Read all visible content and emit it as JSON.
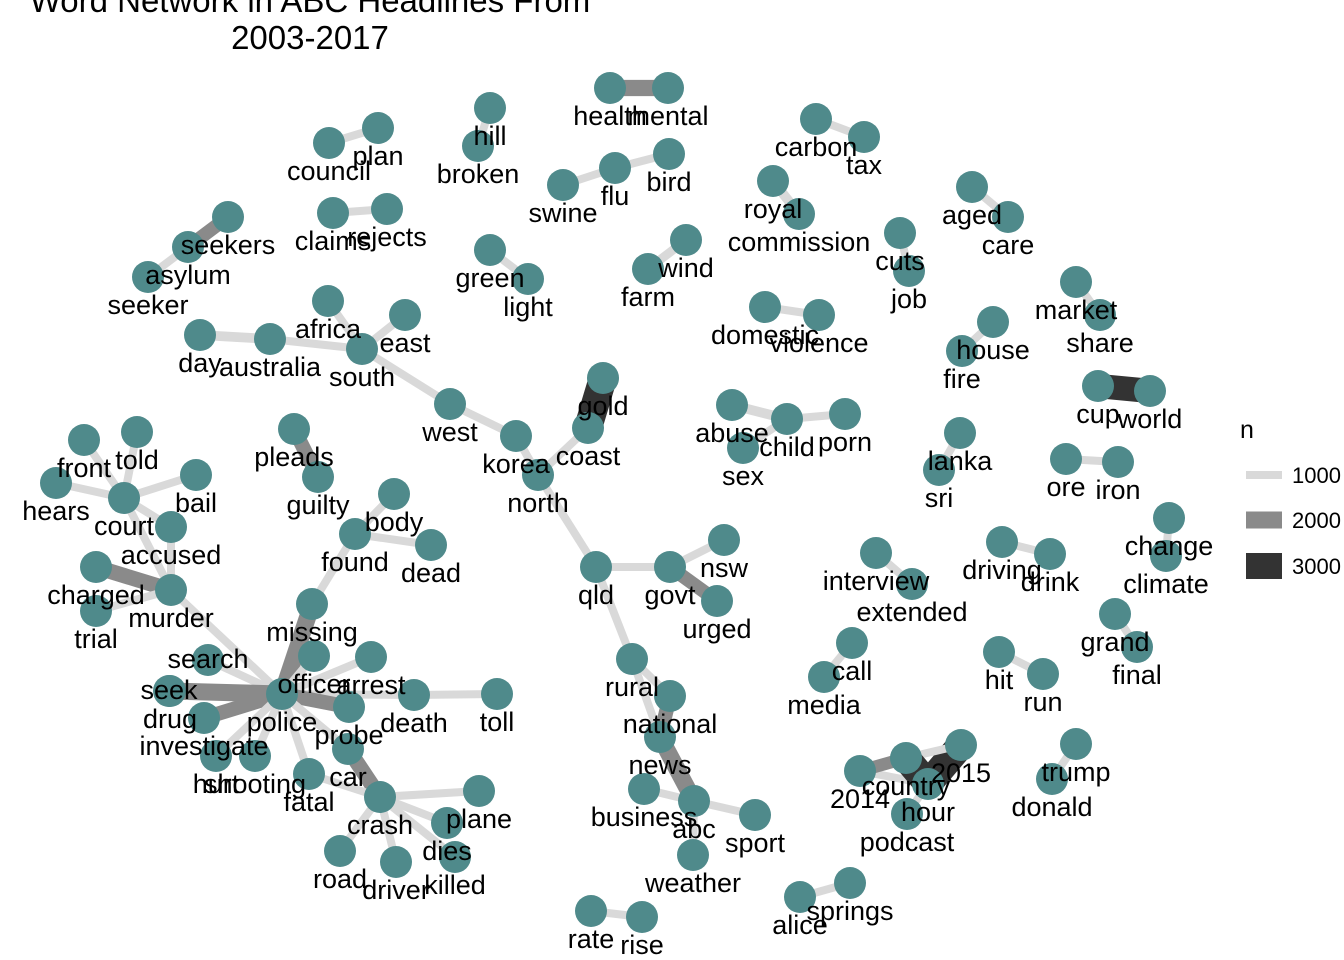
{
  "title_lines": [
    "Word Network in ABC Headlines From",
    "2003-2017"
  ],
  "node_color": "#4f8a8b",
  "legend": {
    "title": "n",
    "items": [
      {
        "label": "1000",
        "color": "#d9d9d9"
      },
      {
        "label": "2000",
        "color": "#8a8a8a"
      },
      {
        "label": "3000",
        "color": "#333333"
      }
    ]
  },
  "nodes": [
    {
      "id": "health",
      "label": "health"
    },
    {
      "id": "mental",
      "label": "mental"
    },
    {
      "id": "hill",
      "label": "hill"
    },
    {
      "id": "broken",
      "label": "broken"
    },
    {
      "id": "council",
      "label": "council"
    },
    {
      "id": "plan",
      "label": "plan"
    },
    {
      "id": "flu",
      "label": "flu"
    },
    {
      "id": "bird",
      "label": "bird"
    },
    {
      "id": "swine",
      "label": "swine"
    },
    {
      "id": "carbon",
      "label": "carbon"
    },
    {
      "id": "tax",
      "label": "tax"
    },
    {
      "id": "royal",
      "label": "royal"
    },
    {
      "id": "commission",
      "label": "commission"
    },
    {
      "id": "aged",
      "label": "aged"
    },
    {
      "id": "care",
      "label": "care"
    },
    {
      "id": "seekers",
      "label": "seekers"
    },
    {
      "id": "asylum",
      "label": "asylum"
    },
    {
      "id": "seeker",
      "label": "seeker"
    },
    {
      "id": "claims",
      "label": "claims"
    },
    {
      "id": "rejects",
      "label": "rejects"
    },
    {
      "id": "cuts",
      "label": "cuts"
    },
    {
      "id": "job",
      "label": "job"
    },
    {
      "id": "green",
      "label": "green"
    },
    {
      "id": "light",
      "label": "light"
    },
    {
      "id": "wind",
      "label": "wind"
    },
    {
      "id": "farm",
      "label": "farm"
    },
    {
      "id": "market",
      "label": "market"
    },
    {
      "id": "share",
      "label": "share"
    },
    {
      "id": "africa",
      "label": "africa"
    },
    {
      "id": "day",
      "label": "day"
    },
    {
      "id": "australia",
      "label": "australia"
    },
    {
      "id": "south",
      "label": "south"
    },
    {
      "id": "east",
      "label": "east"
    },
    {
      "id": "domestic",
      "label": "domestic"
    },
    {
      "id": "violence",
      "label": "violence"
    },
    {
      "id": "house",
      "label": "house"
    },
    {
      "id": "fire",
      "label": "fire"
    },
    {
      "id": "gold",
      "label": "gold"
    },
    {
      "id": "cup",
      "label": "cup"
    },
    {
      "id": "world",
      "label": "world"
    },
    {
      "id": "west",
      "label": "west"
    },
    {
      "id": "coast",
      "label": "coast"
    },
    {
      "id": "korea",
      "label": "korea"
    },
    {
      "id": "north",
      "label": "north"
    },
    {
      "id": "abuse",
      "label": "abuse"
    },
    {
      "id": "child",
      "label": "child"
    },
    {
      "id": "porn",
      "label": "porn"
    },
    {
      "id": "sex",
      "label": "sex"
    },
    {
      "id": "lanka",
      "label": "lanka"
    },
    {
      "id": "sri",
      "label": "sri"
    },
    {
      "id": "ore",
      "label": "ore"
    },
    {
      "id": "iron",
      "label": "iron"
    },
    {
      "id": "front",
      "label": "front"
    },
    {
      "id": "told",
      "label": "told"
    },
    {
      "id": "hears",
      "label": "hears"
    },
    {
      "id": "court",
      "label": "court"
    },
    {
      "id": "bail",
      "label": "bail"
    },
    {
      "id": "accused",
      "label": "accused"
    },
    {
      "id": "pleads",
      "label": "pleads"
    },
    {
      "id": "guilty",
      "label": "guilty"
    },
    {
      "id": "body",
      "label": "body"
    },
    {
      "id": "found",
      "label": "found"
    },
    {
      "id": "dead",
      "label": "dead"
    },
    {
      "id": "change",
      "label": "change"
    },
    {
      "id": "climate",
      "label": "climate"
    },
    {
      "id": "charged",
      "label": "charged"
    },
    {
      "id": "murder",
      "label": "murder"
    },
    {
      "id": "trial",
      "label": "trial"
    },
    {
      "id": "nsw",
      "label": "nsw"
    },
    {
      "id": "qld",
      "label": "qld"
    },
    {
      "id": "govt",
      "label": "govt"
    },
    {
      "id": "urged",
      "label": "urged"
    },
    {
      "id": "interview",
      "label": "interview"
    },
    {
      "id": "extended",
      "label": "extended"
    },
    {
      "id": "driving",
      "label": "driving"
    },
    {
      "id": "drink",
      "label": "drink"
    },
    {
      "id": "missing",
      "label": "missing"
    },
    {
      "id": "search",
      "label": "search"
    },
    {
      "id": "officer",
      "label": "officer"
    },
    {
      "id": "arrest",
      "label": "arrest"
    },
    {
      "id": "seek",
      "label": "seek"
    },
    {
      "id": "drug",
      "label": "drug"
    },
    {
      "id": "police",
      "label": "police"
    },
    {
      "id": "death",
      "label": "death"
    },
    {
      "id": "toll",
      "label": "toll"
    },
    {
      "id": "investigate",
      "label": "investigate"
    },
    {
      "id": "probe",
      "label": "probe"
    },
    {
      "id": "grand",
      "label": "grand"
    },
    {
      "id": "final",
      "label": "final"
    },
    {
      "id": "call",
      "label": "call"
    },
    {
      "id": "media",
      "label": "media"
    },
    {
      "id": "hit",
      "label": "hit"
    },
    {
      "id": "run",
      "label": "run"
    },
    {
      "id": "rural",
      "label": "rural"
    },
    {
      "id": "national",
      "label": "national"
    },
    {
      "id": "hurt",
      "label": "hurt"
    },
    {
      "id": "shooting",
      "label": "shooting"
    },
    {
      "id": "fatal",
      "label": "fatal"
    },
    {
      "id": "car",
      "label": "car"
    },
    {
      "id": "news",
      "label": "news"
    },
    {
      "id": "2015",
      "label": "2015"
    },
    {
      "id": "2014",
      "label": "2014"
    },
    {
      "id": "country",
      "label": "country"
    },
    {
      "id": "hour",
      "label": "hour"
    },
    {
      "id": "trump",
      "label": "trump"
    },
    {
      "id": "donald",
      "label": "donald"
    },
    {
      "id": "crash",
      "label": "crash"
    },
    {
      "id": "plane",
      "label": "plane"
    },
    {
      "id": "business",
      "label": "business"
    },
    {
      "id": "abc",
      "label": "abc"
    },
    {
      "id": "sport",
      "label": "sport"
    },
    {
      "id": "podcast",
      "label": "podcast"
    },
    {
      "id": "road",
      "label": "road"
    },
    {
      "id": "driver",
      "label": "driver"
    },
    {
      "id": "dies",
      "label": "dies"
    },
    {
      "id": "killed",
      "label": "killed"
    },
    {
      "id": "weather",
      "label": "weather"
    },
    {
      "id": "alice",
      "label": "alice"
    },
    {
      "id": "springs",
      "label": "springs"
    },
    {
      "id": "rate",
      "label": "rate"
    },
    {
      "id": "rise",
      "label": "rise"
    }
  ],
  "edges": [
    {
      "from": "health",
      "to": "mental",
      "n": 1900
    },
    {
      "from": "hill",
      "to": "broken",
      "n": 1000
    },
    {
      "from": "council",
      "to": "plan",
      "n": 1000
    },
    {
      "from": "flu",
      "to": "bird",
      "n": 1000
    },
    {
      "from": "swine",
      "to": "flu",
      "n": 1000
    },
    {
      "from": "carbon",
      "to": "tax",
      "n": 1000
    },
    {
      "from": "royal",
      "to": "commission",
      "n": 1200
    },
    {
      "from": "aged",
      "to": "care",
      "n": 1000
    },
    {
      "from": "asylum",
      "to": "seekers",
      "n": 1600
    },
    {
      "from": "asylum",
      "to": "seeker",
      "n": 1000
    },
    {
      "from": "claims",
      "to": "rejects",
      "n": 1000
    },
    {
      "from": "cuts",
      "to": "job",
      "n": 1000
    },
    {
      "from": "green",
      "to": "light",
      "n": 1000
    },
    {
      "from": "wind",
      "to": "farm",
      "n": 1100
    },
    {
      "from": "market",
      "to": "share",
      "n": 1000
    },
    {
      "from": "day",
      "to": "australia",
      "n": 1200
    },
    {
      "from": "australia",
      "to": "south",
      "n": 1000
    },
    {
      "from": "south",
      "to": "africa",
      "n": 1000
    },
    {
      "from": "south",
      "to": "east",
      "n": 1000
    },
    {
      "from": "south",
      "to": "west",
      "n": 1000
    },
    {
      "from": "domestic",
      "to": "violence",
      "n": 1000
    },
    {
      "from": "house",
      "to": "fire",
      "n": 1000
    },
    {
      "from": "gold",
      "to": "coast",
      "n": 3200
    },
    {
      "from": "world",
      "to": "cup",
      "n": 2800
    },
    {
      "from": "west",
      "to": "korea",
      "n": 1000
    },
    {
      "from": "korea",
      "to": "north",
      "n": 1000
    },
    {
      "from": "north",
      "to": "coast",
      "n": 1000
    },
    {
      "from": "north",
      "to": "qld",
      "n": 1000
    },
    {
      "from": "child",
      "to": "abuse",
      "n": 1200
    },
    {
      "from": "child",
      "to": "porn",
      "n": 1000
    },
    {
      "from": "child",
      "to": "sex",
      "n": 1000
    },
    {
      "from": "sri",
      "to": "lanka",
      "n": 1000
    },
    {
      "from": "iron",
      "to": "ore",
      "n": 1000
    },
    {
      "from": "court",
      "to": "front",
      "n": 1000
    },
    {
      "from": "court",
      "to": "told",
      "n": 1000
    },
    {
      "from": "court",
      "to": "hears",
      "n": 1000
    },
    {
      "from": "court",
      "to": "bail",
      "n": 1000
    },
    {
      "from": "court",
      "to": "accused",
      "n": 1000
    },
    {
      "from": "court",
      "to": "murder",
      "n": 1000
    },
    {
      "from": "pleads",
      "to": "guilty",
      "n": 1700
    },
    {
      "from": "found",
      "to": "body",
      "n": 1000
    },
    {
      "from": "found",
      "to": "dead",
      "n": 1000
    },
    {
      "from": "climate",
      "to": "change",
      "n": 1000
    },
    {
      "from": "murder",
      "to": "charged",
      "n": 1800
    },
    {
      "from": "murder",
      "to": "trial",
      "n": 1000
    },
    {
      "from": "murder",
      "to": "accused",
      "n": 1000
    },
    {
      "from": "murder",
      "to": "police",
      "n": 1000
    },
    {
      "from": "qld",
      "to": "govt",
      "n": 1000
    },
    {
      "from": "qld",
      "to": "rural",
      "n": 1000
    },
    {
      "from": "govt",
      "to": "nsw",
      "n": 1000
    },
    {
      "from": "govt",
      "to": "urged",
      "n": 1600
    },
    {
      "from": "interview",
      "to": "extended",
      "n": 1000
    },
    {
      "from": "drink",
      "to": "driving",
      "n": 1000
    },
    {
      "from": "missing",
      "to": "police",
      "n": 2000
    },
    {
      "from": "missing",
      "to": "found",
      "n": 1000
    },
    {
      "from": "search",
      "to": "police",
      "n": 1000
    },
    {
      "from": "officer",
      "to": "police",
      "n": 1000
    },
    {
      "from": "arrest",
      "to": "police",
      "n": 1000
    },
    {
      "from": "seek",
      "to": "police",
      "n": 1000
    },
    {
      "from": "drug",
      "to": "police",
      "n": 2000
    },
    {
      "from": "police",
      "to": "death",
      "n": 1000
    },
    {
      "from": "death",
      "to": "toll",
      "n": 1000
    },
    {
      "from": "investigate",
      "to": "police",
      "n": 1700
    },
    {
      "from": "probe",
      "to": "police",
      "n": 1700
    },
    {
      "from": "grand",
      "to": "final",
      "n": 1000
    },
    {
      "from": "call",
      "to": "media",
      "n": 1000
    },
    {
      "from": "hit",
      "to": "run",
      "n": 1000
    },
    {
      "from": "rural",
      "to": "national",
      "n": 1000
    },
    {
      "from": "rural",
      "to": "news",
      "n": 1000
    },
    {
      "from": "national",
      "to": "news",
      "n": 1700
    },
    {
      "from": "hurt",
      "to": "police",
      "n": 1000
    },
    {
      "from": "shooting",
      "to": "police",
      "n": 1000
    },
    {
      "from": "fatal",
      "to": "police",
      "n": 1000
    },
    {
      "from": "car",
      "to": "police",
      "n": 1000
    },
    {
      "from": "car",
      "to": "crash",
      "n": 1800
    },
    {
      "from": "news",
      "to": "abc",
      "n": 2000
    },
    {
      "from": "2015",
      "to": "hour",
      "n": 3200
    },
    {
      "from": "2015",
      "to": "country",
      "n": 1000
    },
    {
      "from": "2014",
      "to": "hour",
      "n": 1000
    },
    {
      "from": "2014",
      "to": "country",
      "n": 1500
    },
    {
      "from": "country",
      "to": "hour",
      "n": 3200
    },
    {
      "from": "hour",
      "to": "podcast",
      "n": 1000
    },
    {
      "from": "trump",
      "to": "donald",
      "n": 1000
    },
    {
      "from": "crash",
      "to": "plane",
      "n": 1000
    },
    {
      "from": "crash",
      "to": "fatal",
      "n": 1000
    },
    {
      "from": "crash",
      "to": "road",
      "n": 1000
    },
    {
      "from": "crash",
      "to": "driver",
      "n": 1000
    },
    {
      "from": "crash",
      "to": "dies",
      "n": 1000
    },
    {
      "from": "crash",
      "to": "killed",
      "n": 1000
    },
    {
      "from": "business",
      "to": "abc",
      "n": 1000
    },
    {
      "from": "abc",
      "to": "sport",
      "n": 1000
    },
    {
      "from": "abc",
      "to": "weather",
      "n": 1000
    },
    {
      "from": "alice",
      "to": "springs",
      "n": 1000
    },
    {
      "from": "rate",
      "to": "rise",
      "n": 1000
    }
  ]
}
